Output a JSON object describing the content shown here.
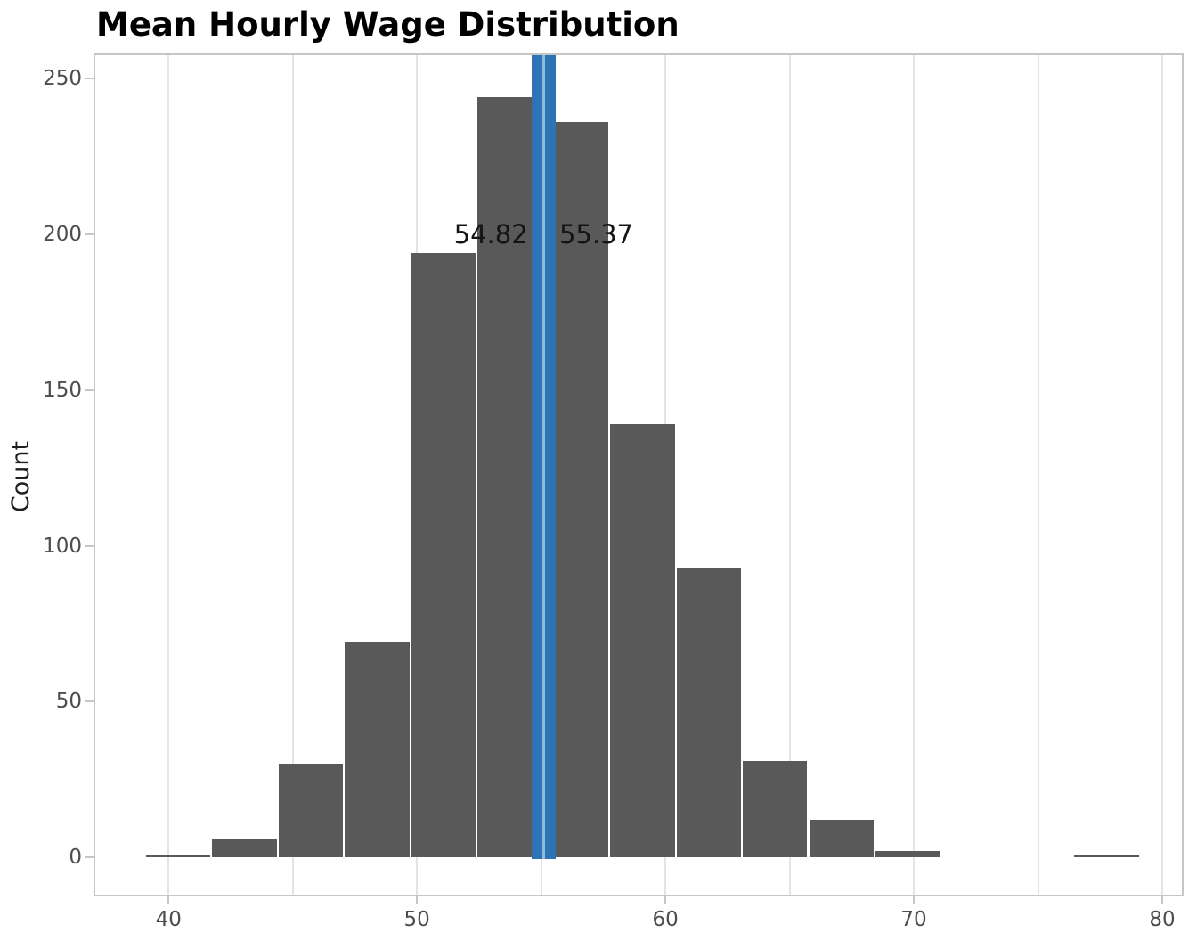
{
  "chart_data": {
    "type": "bar",
    "subtype": "histogram",
    "title": "Mean Hourly Wage Distribution",
    "xlabel": "",
    "ylabel": "Count",
    "bin_start": 39.05,
    "bin_width": 2.67,
    "counts": [
      1,
      6,
      30,
      69,
      194,
      244,
      236,
      139,
      93,
      31,
      12,
      2,
      0,
      0,
      1
    ],
    "x_ticks": [
      40,
      50,
      60,
      70,
      80
    ],
    "y_ticks": [
      0,
      50,
      100,
      150,
      200,
      250
    ],
    "grid_values": [
      40,
      45,
      50,
      55,
      60,
      65,
      70,
      75,
      80
    ],
    "grid": "vertical-only",
    "legend": false,
    "xlim": [
      37.05,
      80.79
    ],
    "ylim": [
      -12,
      257.5
    ],
    "vlines": [
      {
        "value": 54.82,
        "label": "54.82",
        "label_side": "left"
      },
      {
        "value": 55.37,
        "label": "55.37",
        "label_side": "right"
      }
    ],
    "colors": {
      "bar": "#595959",
      "vline": "#2e74b5",
      "vline_gap": "#8fb9de",
      "grid": "#e4e4e4",
      "border": "#c6c6c6",
      "tick_text": "#4d4d4d",
      "label_text": "#141414"
    }
  }
}
